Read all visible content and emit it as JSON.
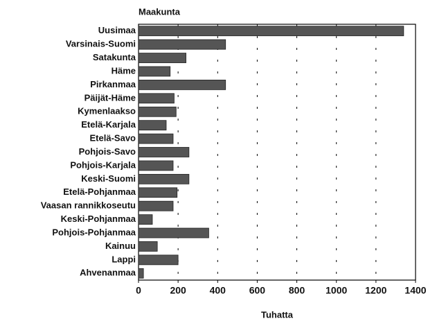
{
  "chart_data": {
    "type": "barh",
    "ylabel": "Maakunta",
    "xlabel": "Tuhatta",
    "categories": [
      "Uusimaa",
      "Varsinais-Suomi",
      "Satakunta",
      "Häme",
      "Pirkanmaa",
      "Päijät-Häme",
      "Kymenlaakso",
      "Etelä-Karjala",
      "Etelä-Savo",
      "Pohjois-Savo",
      "Pohjois-Karjala",
      "Keski-Suomi",
      "Etelä-Pohjanmaa",
      "Vaasan rannikkoseutu",
      "Keski-Pohjanmaa",
      "Pohjois-Pohjanmaa",
      "Kainuu",
      "Lappi",
      "Ahvenanmaa"
    ],
    "values": [
      1340,
      440,
      240,
      160,
      440,
      180,
      190,
      140,
      175,
      255,
      175,
      255,
      195,
      175,
      70,
      355,
      95,
      200,
      25
    ],
    "color": "#555555",
    "xlim": [
      0,
      1400
    ],
    "xticks": [
      0,
      200,
      400,
      600,
      800,
      1000,
      1200,
      1400
    ],
    "grid": true
  }
}
